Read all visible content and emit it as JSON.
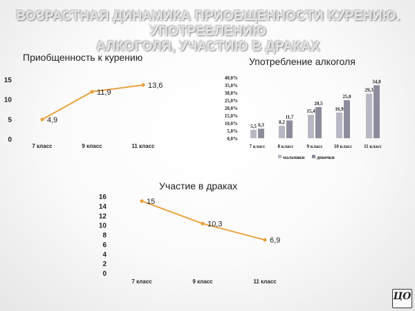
{
  "slide": {
    "title_line1": "Возрастная динамика приобщенности курению. употреблению",
    "title_line2": "алкоголя, участию в драках"
  },
  "logo": {
    "text": "ЦО"
  },
  "colors": {
    "line": "#e8a33c",
    "boys": "#b8b8c4",
    "girls": "#8c8c9c",
    "axis_text": "#222222"
  },
  "chart_data": [
    {
      "type": "line",
      "title": "Приобщенность к курению",
      "categories": [
        "7 класс",
        "9 класс",
        "11 класс"
      ],
      "values": [
        4.9,
        11.9,
        13.6
      ],
      "value_labels": [
        "4,9",
        "11,9",
        "13,6"
      ],
      "yticks": [
        0,
        5,
        10,
        15
      ],
      "ylim": [
        0,
        15
      ],
      "grid": false,
      "color": "#e8a33c"
    },
    {
      "type": "bar",
      "title": "Употребление алкоголя",
      "categories": [
        "7 класс",
        "8 класс",
        "9 класс",
        "10 класс",
        "11 класс"
      ],
      "series": [
        {
          "name": "мальчики",
          "values": [
            5.5,
            8.2,
            15.4,
            16.9,
            29.3
          ],
          "labels": [
            "5,5",
            "8,2",
            "15,4",
            "16,9",
            "29,3"
          ],
          "color": "#b8b8c4"
        },
        {
          "name": "девочки",
          "values": [
            6.3,
            11.7,
            20.5,
            25.0,
            34.8
          ],
          "labels": [
            "6,3",
            "11,7",
            "20,5",
            "25,0",
            "34,8"
          ],
          "color": "#8c8c9c"
        }
      ],
      "yticks": [
        0,
        5,
        10,
        15,
        20,
        25,
        30,
        35,
        40
      ],
      "ytick_labels": [
        "0,0%",
        "5,0%",
        "10,0%",
        "15,0%",
        "20,0%",
        "25,0%",
        "30,0%",
        "35,0%",
        "40,0%"
      ],
      "ylim": [
        0,
        40
      ],
      "legend": "bottom",
      "grid": false
    },
    {
      "type": "line",
      "title": "Участие в драках",
      "categories": [
        "7 класс",
        "9 класс",
        "11 класс"
      ],
      "values": [
        15,
        10.3,
        6.9
      ],
      "value_labels": [
        "15",
        "10,3",
        "6,9"
      ],
      "yticks": [
        0,
        2,
        4,
        6,
        8,
        10,
        12,
        14,
        16
      ],
      "ylim": [
        0,
        16
      ],
      "grid": false,
      "color": "#e8a33c"
    }
  ]
}
